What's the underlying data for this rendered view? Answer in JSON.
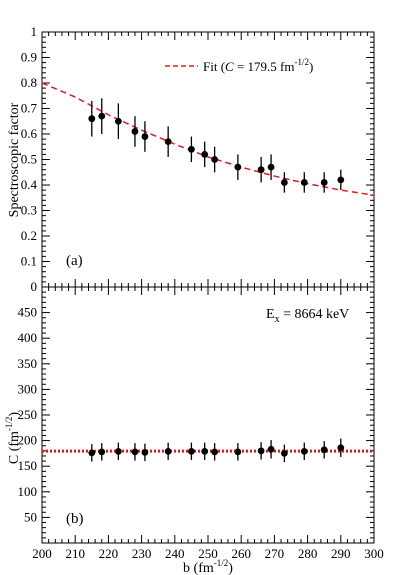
{
  "chart_data": [
    {
      "panel": "(a)",
      "type": "scatter",
      "ylabel": "Spectroscopic factor",
      "xlim": [
        200,
        300
      ],
      "ylim": [
        0,
        1
      ],
      "yticks": [
        "0",
        "0.1",
        "0.2",
        "0.3",
        "0.4",
        "0.5",
        "0.6",
        "0.7",
        "0.8",
        "0.9",
        "1"
      ],
      "legend": {
        "placement": "top-right",
        "label_prefix": "Fit (",
        "label_italic": "C",
        "label_mid": " = 179.5 fm",
        "label_sup": "-1/2",
        "label_suffix": ")"
      },
      "fit": {
        "style": "dashed",
        "color": "#e8161b",
        "x": [
          200,
          210,
          220,
          230,
          240,
          250,
          260,
          270,
          280,
          290,
          300
        ],
        "y": [
          0.8,
          0.745,
          0.675,
          0.615,
          0.56,
          0.51,
          0.47,
          0.435,
          0.405,
          0.38,
          0.36
        ]
      },
      "points": [
        {
          "x": 215,
          "y": 0.66,
          "err": 0.07
        },
        {
          "x": 218,
          "y": 0.67,
          "err": 0.07
        },
        {
          "x": 223,
          "y": 0.65,
          "err": 0.07
        },
        {
          "x": 228,
          "y": 0.61,
          "err": 0.06
        },
        {
          "x": 231,
          "y": 0.59,
          "err": 0.06
        },
        {
          "x": 238,
          "y": 0.57,
          "err": 0.06
        },
        {
          "x": 245,
          "y": 0.54,
          "err": 0.05
        },
        {
          "x": 249,
          "y": 0.52,
          "err": 0.05
        },
        {
          "x": 252,
          "y": 0.5,
          "err": 0.05
        },
        {
          "x": 259,
          "y": 0.47,
          "err": 0.05
        },
        {
          "x": 266,
          "y": 0.46,
          "err": 0.05
        },
        {
          "x": 269,
          "y": 0.47,
          "err": 0.05
        },
        {
          "x": 273,
          "y": 0.41,
          "err": 0.04
        },
        {
          "x": 279,
          "y": 0.41,
          "err": 0.04
        },
        {
          "x": 285,
          "y": 0.41,
          "err": 0.04
        },
        {
          "x": 290,
          "y": 0.42,
          "err": 0.04
        }
      ]
    },
    {
      "panel": "(b)",
      "type": "scatter",
      "ylabel": "C (fm",
      "ylabel_sup": "-1/2",
      "ylabel_close": ")",
      "xlabel": "b (fm",
      "xlabel_sup": "-1/2",
      "xlabel_close": ")",
      "xlim": [
        200,
        300
      ],
      "ylim": [
        0,
        500
      ],
      "xticks": [
        "200",
        "210",
        "220",
        "230",
        "240",
        "250",
        "260",
        "270",
        "280",
        "290",
        "300"
      ],
      "yticks": [
        "50",
        "100",
        "150",
        "200",
        "250",
        "300",
        "350",
        "400",
        "450"
      ],
      "annotation": {
        "main": "E",
        "sub": "x",
        "rest": " = 8664 keV"
      },
      "reference_line": {
        "style": "dotted",
        "color": "#e8161b",
        "y": 179.5
      },
      "points": [
        {
          "x": 215,
          "y": 176,
          "err": 17
        },
        {
          "x": 218,
          "y": 178,
          "err": 17
        },
        {
          "x": 223,
          "y": 179,
          "err": 17
        },
        {
          "x": 228,
          "y": 178,
          "err": 17
        },
        {
          "x": 231,
          "y": 177,
          "err": 17
        },
        {
          "x": 238,
          "y": 179,
          "err": 17
        },
        {
          "x": 245,
          "y": 179,
          "err": 17
        },
        {
          "x": 249,
          "y": 179,
          "err": 17
        },
        {
          "x": 252,
          "y": 178,
          "err": 17
        },
        {
          "x": 259,
          "y": 178,
          "err": 17
        },
        {
          "x": 266,
          "y": 180,
          "err": 17
        },
        {
          "x": 269,
          "y": 183,
          "err": 18
        },
        {
          "x": 273,
          "y": 175,
          "err": 17
        },
        {
          "x": 279,
          "y": 179,
          "err": 17
        },
        {
          "x": 285,
          "y": 182,
          "err": 17
        },
        {
          "x": 290,
          "y": 186,
          "err": 18
        }
      ]
    }
  ]
}
